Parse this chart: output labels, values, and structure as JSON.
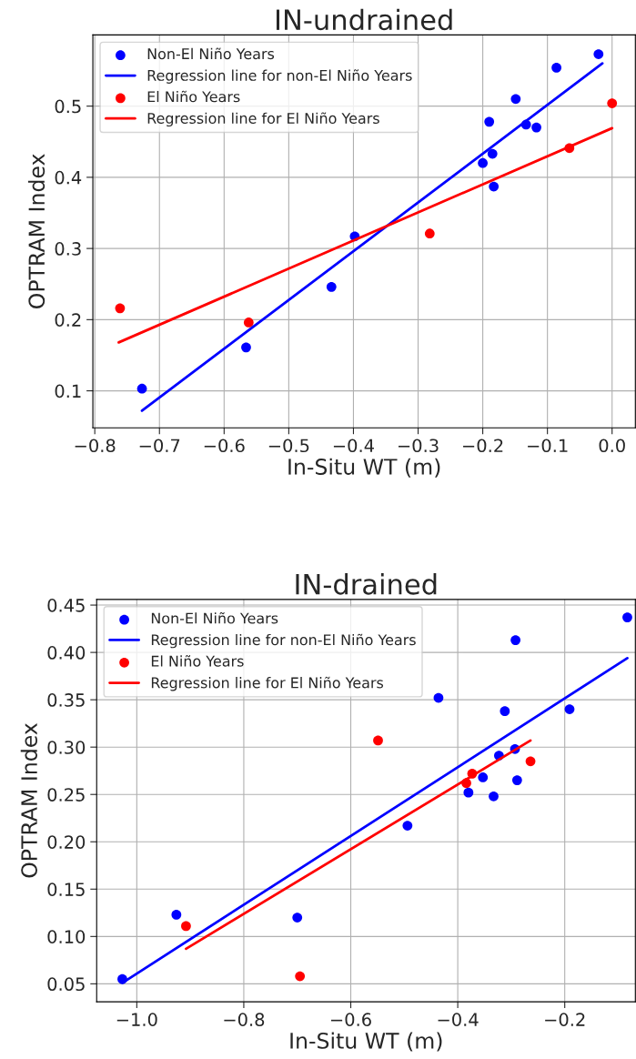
{
  "chart_data": [
    {
      "type": "scatter",
      "title": "IN-undrained",
      "xlabel": "In-Situ WT (m)",
      "ylabel": "OPTRAM Index",
      "xlim": [
        -0.803,
        0.036
      ],
      "ylim": [
        0.048,
        0.6
      ],
      "xticks": [
        {
          "value": -0.8,
          "label": "−0.8"
        },
        {
          "value": -0.7,
          "label": "−0.7"
        },
        {
          "value": -0.6,
          "label": "−0.6"
        },
        {
          "value": -0.5,
          "label": "−0.5"
        },
        {
          "value": -0.4,
          "label": "−0.4"
        },
        {
          "value": -0.3,
          "label": "−0.3"
        },
        {
          "value": -0.2,
          "label": "−0.2"
        },
        {
          "value": -0.1,
          "label": "−0.1"
        },
        {
          "value": 0.0,
          "label": "0.0"
        }
      ],
      "yticks": [
        0.1,
        0.2,
        0.3,
        0.4,
        0.5
      ],
      "grid": true,
      "legend": "top left",
      "series": [
        {
          "name": "Non-El Niño Years",
          "color": "#0000ff",
          "x": [
            -0.727,
            -0.566,
            -0.434,
            -0.398,
            -0.2,
            -0.19,
            -0.185,
            -0.183,
            -0.149,
            -0.133,
            -0.117,
            -0.086,
            -0.021
          ],
          "values": [
            0.103,
            0.161,
            0.246,
            0.317,
            0.42,
            0.478,
            0.433,
            0.387,
            0.51,
            0.474,
            0.47,
            0.554,
            0.573
          ]
        },
        {
          "type": "line",
          "name": "Regression line for non-El Niño Years",
          "color": "#0000ff",
          "x": [
            -0.727,
            -0.015
          ],
          "values": [
            0.072,
            0.56
          ]
        },
        {
          "name": "El Niño Years",
          "color": "#ff0000",
          "x": [
            -0.761,
            -0.562,
            -0.282,
            -0.066,
            0.0
          ],
          "values": [
            0.216,
            0.196,
            0.321,
            0.441,
            0.504
          ]
        },
        {
          "type": "line",
          "name": "Regression line for El Niño Years",
          "color": "#ff0000",
          "x": [
            -0.763,
            0.0
          ],
          "values": [
            0.168,
            0.469
          ]
        }
      ]
    },
    {
      "type": "scatter",
      "title": "IN-drained",
      "xlabel": "In-Situ WT (m)",
      "ylabel": "OPTRAM Index",
      "xlim": [
        -1.075,
        -0.068
      ],
      "ylim": [
        0.031,
        0.456
      ],
      "xticks": [
        {
          "value": -1.0,
          "label": "−1.0"
        },
        {
          "value": -0.8,
          "label": "−0.8"
        },
        {
          "value": -0.6,
          "label": "−0.6"
        },
        {
          "value": -0.4,
          "label": "−0.4"
        },
        {
          "value": -0.2,
          "label": "−0.2"
        }
      ],
      "yticks": [
        0.05,
        {
          "value": 0.1,
          "label": "0.10"
        },
        0.15,
        {
          "value": 0.2,
          "label": "0.20"
        },
        0.25,
        {
          "value": 0.3,
          "label": "0.30"
        },
        0.35,
        {
          "value": 0.4,
          "label": "0.40"
        },
        0.45
      ],
      "grid": true,
      "legend": "top left",
      "series": [
        {
          "name": "Non-El Niño Years",
          "color": "#0000ff",
          "x": [
            -1.027,
            -0.926,
            -0.7,
            -0.494,
            -0.436,
            -0.38,
            -0.353,
            -0.333,
            -0.323,
            -0.312,
            -0.293,
            -0.292,
            -0.289,
            -0.191,
            -0.083
          ],
          "values": [
            0.055,
            0.123,
            0.12,
            0.217,
            0.352,
            0.252,
            0.268,
            0.248,
            0.291,
            0.338,
            0.298,
            0.413,
            0.265,
            0.34,
            0.437
          ]
        },
        {
          "type": "line",
          "name": "Regression line for non-El Niño Years",
          "color": "#0000ff",
          "x": [
            -1.027,
            -0.083
          ],
          "values": [
            0.051,
            0.394
          ]
        },
        {
          "name": "El Niño Years",
          "color": "#ff0000",
          "x": [
            -0.908,
            -0.695,
            -0.549,
            -0.384,
            -0.373,
            -0.264
          ],
          "values": [
            0.111,
            0.058,
            0.307,
            0.262,
            0.272,
            0.285
          ]
        },
        {
          "type": "line",
          "name": "Regression line for El Niño Years",
          "color": "#ff0000",
          "x": [
            -0.908,
            -0.264
          ],
          "values": [
            0.087,
            0.307
          ]
        }
      ]
    }
  ]
}
